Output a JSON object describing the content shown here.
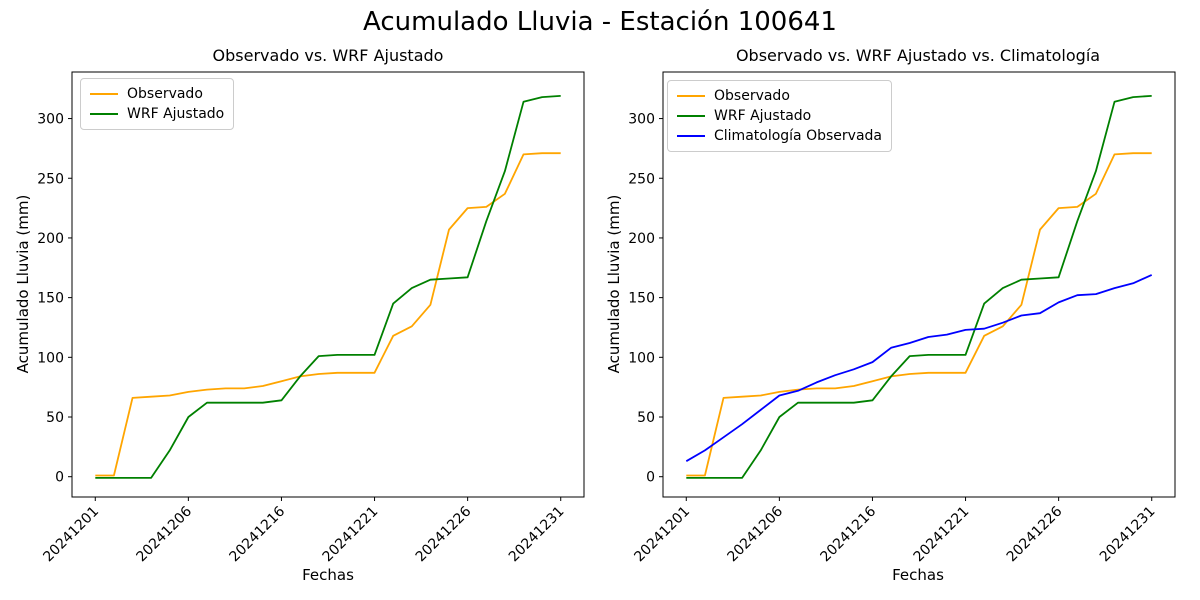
{
  "figure": {
    "title": "Acumulado Lluvia - Estación 100641",
    "background": "#ffffff",
    "text_color": "#000000"
  },
  "chart_data": [
    {
      "type": "line",
      "title": "Observado vs. WRF Ajustado",
      "xlabel": "Fechas",
      "ylabel": "Acumulado Lluvia (mm)",
      "grid": false,
      "legend_position": "upper left",
      "x_index_count": 26,
      "x_ticks": [
        {
          "index": 0,
          "label": "20241201"
        },
        {
          "index": 5,
          "label": "20241206"
        },
        {
          "index": 10,
          "label": "20241216"
        },
        {
          "index": 15,
          "label": "20241221"
        },
        {
          "index": 20,
          "label": "20241226"
        },
        {
          "index": 25,
          "label": "20241231"
        }
      ],
      "y_ticks": [
        0,
        50,
        100,
        150,
        200,
        250,
        300
      ],
      "xlim": [
        -1.25,
        26.25
      ],
      "ylim": [
        -17,
        339
      ],
      "series": [
        {
          "name": "Observado",
          "color": "#FFA500",
          "values": [
            1,
            1,
            66,
            67,
            68,
            71,
            73,
            74,
            74,
            76,
            80,
            84,
            86,
            87,
            87,
            87,
            118,
            126,
            144,
            207,
            225,
            226,
            237,
            270,
            271,
            271
          ]
        },
        {
          "name": "WRF Ajustado",
          "color": "#008000",
          "values": [
            -1,
            -1,
            -1,
            -1,
            22,
            50,
            62,
            62,
            62,
            62,
            64,
            84,
            101,
            102,
            102,
            102,
            145,
            158,
            165,
            166,
            167,
            214,
            256,
            314,
            318,
            319
          ]
        }
      ]
    },
    {
      "type": "line",
      "title": "Observado vs. WRF Ajustado vs. Climatología",
      "xlabel": "Fechas",
      "ylabel": "Acumulado Lluvia (mm)",
      "grid": false,
      "legend_position": "upper left",
      "x_index_count": 26,
      "x_ticks": [
        {
          "index": 0,
          "label": "20241201"
        },
        {
          "index": 5,
          "label": "20241206"
        },
        {
          "index": 10,
          "label": "20241216"
        },
        {
          "index": 15,
          "label": "20241221"
        },
        {
          "index": 20,
          "label": "20241226"
        },
        {
          "index": 25,
          "label": "20241231"
        }
      ],
      "y_ticks": [
        0,
        50,
        100,
        150,
        200,
        250,
        300
      ],
      "xlim": [
        -1.25,
        26.25
      ],
      "ylim": [
        -17,
        339
      ],
      "series": [
        {
          "name": "Observado",
          "color": "#FFA500",
          "values": [
            1,
            1,
            66,
            67,
            68,
            71,
            73,
            74,
            74,
            76,
            80,
            84,
            86,
            87,
            87,
            87,
            118,
            126,
            144,
            207,
            225,
            226,
            237,
            270,
            271,
            271
          ]
        },
        {
          "name": "WRF Ajustado",
          "color": "#008000",
          "values": [
            -1,
            -1,
            -1,
            -1,
            22,
            50,
            62,
            62,
            62,
            62,
            64,
            84,
            101,
            102,
            102,
            102,
            145,
            158,
            165,
            166,
            167,
            214,
            256,
            314,
            318,
            319
          ]
        },
        {
          "name": "Climatología Observada",
          "color": "#0000FF",
          "values": [
            13,
            22,
            33,
            44,
            56,
            68,
            72,
            79,
            85,
            90,
            96,
            108,
            112,
            117,
            119,
            123,
            124,
            129,
            135,
            137,
            146,
            152,
            153,
            158,
            162,
            169
          ]
        }
      ]
    }
  ]
}
